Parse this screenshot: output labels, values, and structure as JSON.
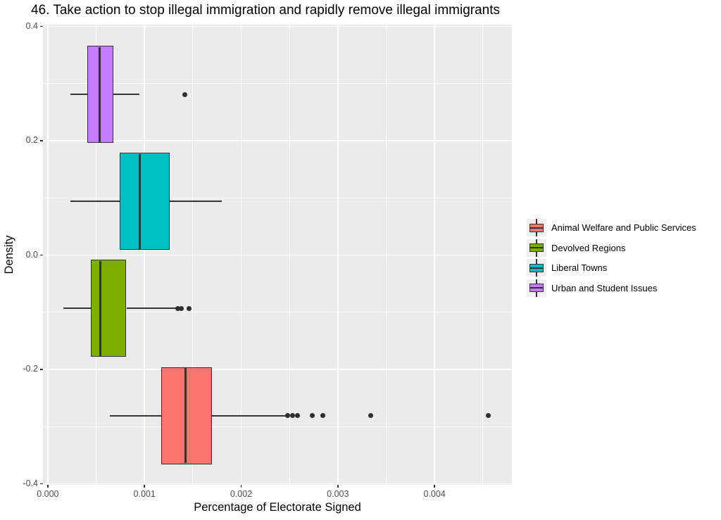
{
  "chart_data": {
    "type": "boxplot",
    "orientation": "horizontal",
    "title": "46. Take action to stop illegal immigration and rapidly remove illegal immigrants",
    "xlabel": "Percentage of Electorate Signed",
    "ylabel": "Density",
    "xlim": [
      -5e-05,
      0.0048
    ],
    "ylim": [
      -0.402,
      0.403
    ],
    "x_ticks": [
      {
        "value": 0.0,
        "label": "0.000"
      },
      {
        "value": 0.001,
        "label": "0.001"
      },
      {
        "value": 0.002,
        "label": "0.002"
      },
      {
        "value": 0.003,
        "label": "0.003"
      },
      {
        "value": 0.004,
        "label": "0.004"
      }
    ],
    "x_minor_ticks": [
      0.0005,
      0.0015,
      0.0025,
      0.0035,
      0.0045
    ],
    "y_ticks": [
      {
        "value": 0.4,
        "label": "0.4"
      },
      {
        "value": 0.2,
        "label": "0.2"
      },
      {
        "value": 0.0,
        "label": "0.0"
      },
      {
        "value": -0.2,
        "label": "-0.2"
      },
      {
        "value": -0.4,
        "label": "-0.4"
      }
    ],
    "y_minor_ticks": [
      0.3,
      0.1,
      -0.1,
      -0.3
    ],
    "grid_on": true,
    "legend_position": "right",
    "panel_bg": "#EBEBEB",
    "grid_color": "#FFFFFF",
    "box_outline_color": "#333333",
    "tick_label_color": "#4D4D4D",
    "box_height": 0.17,
    "series": [
      {
        "name": "Animal Welfare and Public Services",
        "color": "#F8766D",
        "position": -0.281,
        "whisker_low": 0.000643,
        "q1": 0.001177,
        "median": 0.001427,
        "q3": 0.001697,
        "whisker_high": 0.002477,
        "outliers": [
          0.002484,
          0.002531,
          0.002582,
          0.002732,
          0.002846,
          0.00334,
          0.004554
        ]
      },
      {
        "name": "Devolved Regions",
        "color": "#7CAE00",
        "position": -0.0935,
        "whisker_low": 0.000162,
        "q1": 0.000448,
        "median": 0.000543,
        "q3": 0.000813,
        "whisker_high": 0.001335,
        "outliers": [
          0.001345,
          0.001381,
          0.001461
        ]
      },
      {
        "name": "Liberal Towns",
        "color": "#00BFC4",
        "position": 0.0935,
        "whisker_low": 0.000237,
        "q1": 0.000745,
        "median": 0.000951,
        "q3": 0.00126,
        "whisker_high": 0.0018,
        "outliers": []
      },
      {
        "name": "Urban and Student Issues",
        "color": "#C77CFF",
        "position": 0.281,
        "whisker_low": 0.000235,
        "q1": 0.000407,
        "median": 0.000538,
        "q3": 0.000679,
        "whisker_high": 0.000949,
        "outliers": [
          0.00142
        ]
      }
    ]
  }
}
